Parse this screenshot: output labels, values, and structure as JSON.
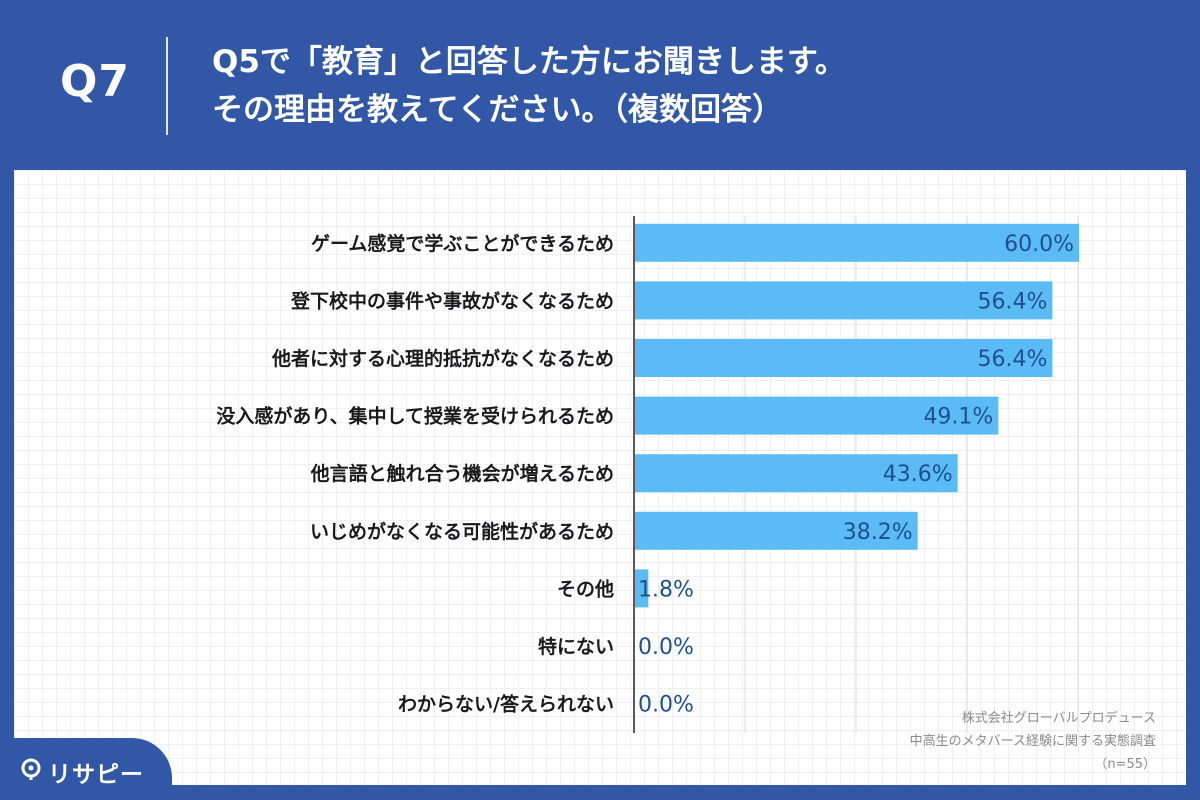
{
  "header": {
    "question_number": "Q7",
    "question_line1": "Q5で「教育」と回答した方にお聞きします。",
    "question_line2": "その理由を教えてください。（複数回答）"
  },
  "colors": {
    "background": "#3157a6",
    "bar": "#5bbcf5",
    "value_text": "#1f4f8f",
    "label_text": "#1a1a1a"
  },
  "chart_data": {
    "type": "bar",
    "orientation": "horizontal",
    "categories": [
      "ゲーム感覚で学ぶことができるため",
      "登下校中の事件や事故がなくなるため",
      "他者に対する心理的抵抗がなくなるため",
      "没入感があり、集中して授業を受けられるため",
      "他言語と触れ合う機会が増えるため",
      "いじめがなくなる可能性があるため",
      "その他",
      "特にない",
      "わからない/答えられない"
    ],
    "values": [
      60.0,
      56.4,
      56.4,
      49.1,
      43.6,
      38.2,
      1.8,
      0.0,
      0.0
    ],
    "value_labels": [
      "60.0%",
      "56.4%",
      "56.4%",
      "49.1%",
      "43.6%",
      "38.2%",
      "1.8%",
      "0.0%",
      "0.0%"
    ],
    "xlim": [
      0,
      60
    ],
    "grid": true
  },
  "footer": {
    "company": "株式会社グローバルプロデュース",
    "survey": "中高生のメタバース経験に関する実態調査",
    "sample": "（n=55）"
  },
  "brand": {
    "name": "リサピー",
    "icon": "pin-icon"
  }
}
